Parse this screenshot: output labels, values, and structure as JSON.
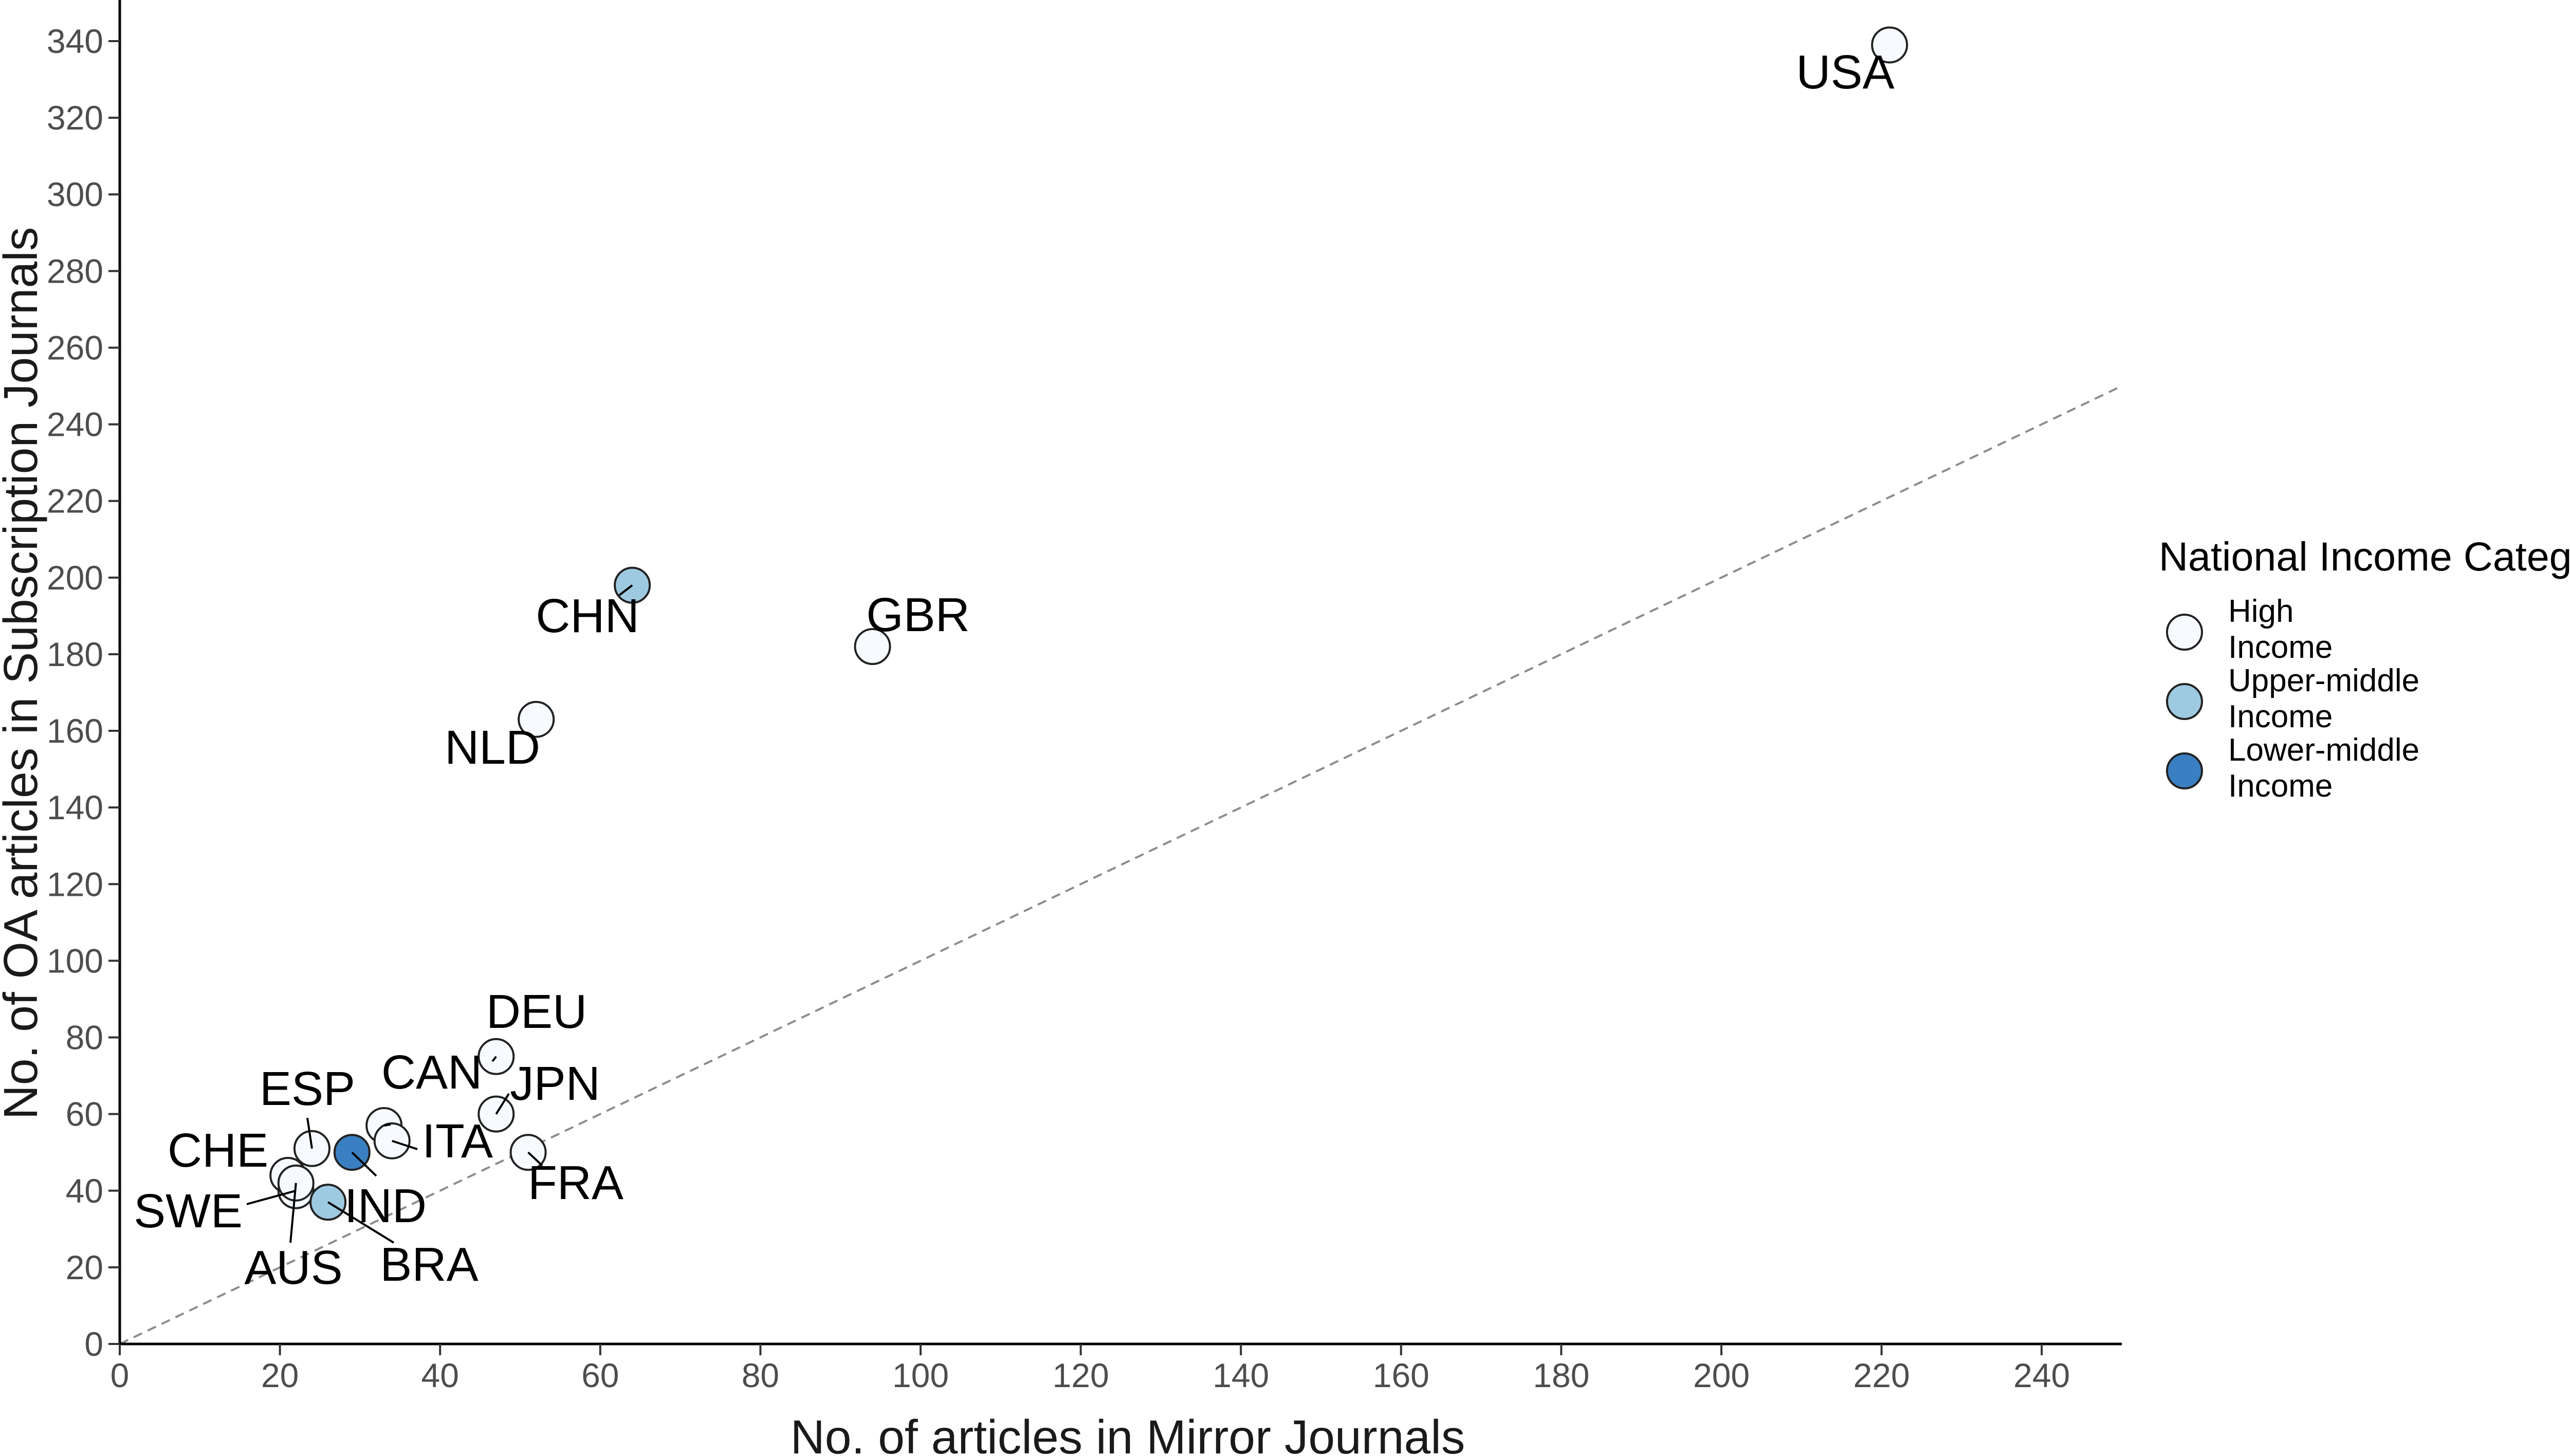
{
  "colors": {
    "High Income": "#f7fbff",
    "Upper-middle Income": "#9ecae1",
    "Lower-middle Income": "#3a7fc1"
  },
  "chart_data": {
    "type": "scatter",
    "title": "",
    "xlabel": "No. of articles in Mirror Journals",
    "ylabel": "No. of OA articles in Subscription Journals",
    "xlim": [
      0,
      250
    ],
    "ylim": [
      0,
      340
    ],
    "x_ticks": [
      0,
      20,
      40,
      60,
      80,
      100,
      120,
      140,
      160,
      180,
      200,
      220,
      240
    ],
    "y_ticks": [
      0,
      20,
      40,
      60,
      80,
      100,
      120,
      140,
      160,
      180,
      200,
      220,
      240,
      260,
      280,
      300,
      320,
      340
    ],
    "reference_line": "y = x (dashed)",
    "grid": false,
    "legend": {
      "title": "National Income Category",
      "position": "right",
      "entries": [
        {
          "line1": "High",
          "line2": "Income",
          "category": "High Income"
        },
        {
          "line1": "Upper-middle",
          "line2": "Income",
          "category": "Upper-middle Income"
        },
        {
          "line1": "Lower-middle",
          "line2": "Income",
          "category": "Lower-middle Income"
        }
      ]
    },
    "points": [
      {
        "label": "USA",
        "x": 221,
        "y": 339,
        "category": "High Income"
      },
      {
        "label": "CHN",
        "x": 64,
        "y": 198,
        "category": "Upper-middle Income"
      },
      {
        "label": "GBR",
        "x": 94,
        "y": 182,
        "category": "High Income"
      },
      {
        "label": "NLD",
        "x": 52,
        "y": 163,
        "category": "High Income"
      },
      {
        "label": "DEU",
        "x": 47,
        "y": 75,
        "category": "High Income"
      },
      {
        "label": "JPN",
        "x": 47,
        "y": 60,
        "category": "High Income"
      },
      {
        "label": "CAN",
        "x": 33,
        "y": 57,
        "category": "High Income"
      },
      {
        "label": "ITA",
        "x": 34,
        "y": 53,
        "category": "High Income"
      },
      {
        "label": "FRA",
        "x": 51,
        "y": 50,
        "category": "High Income"
      },
      {
        "label": "ESP",
        "x": 24,
        "y": 51,
        "category": "High Income"
      },
      {
        "label": "IND",
        "x": 29,
        "y": 50,
        "category": "Lower-middle Income"
      },
      {
        "label": "CHE",
        "x": 21,
        "y": 44,
        "category": "High Income"
      },
      {
        "label": "SWE",
        "x": 22,
        "y": 40,
        "category": "High Income"
      },
      {
        "label": "AUS",
        "x": 22,
        "y": 42,
        "category": "High Income"
      },
      {
        "label": "BRA",
        "x": 26,
        "y": 37,
        "category": "Upper-middle Income"
      }
    ]
  }
}
